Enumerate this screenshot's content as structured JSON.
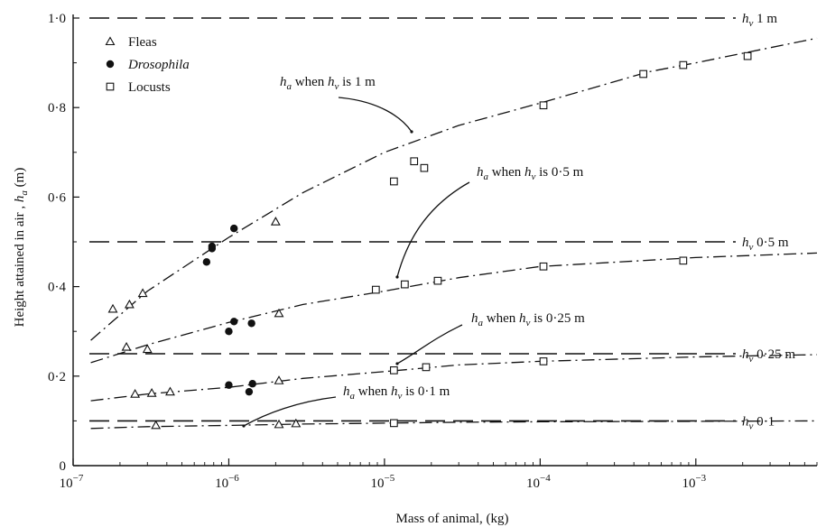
{
  "chart_data": {
    "type": "scatter",
    "xscale": "log",
    "xlim": [
      1e-07,
      0.006
    ],
    "ylim": [
      0,
      1.0
    ],
    "xlabel": "Mass of animal, (kg)",
    "ylabel": "Height attained in air , h_a (m)",
    "ylabel_parts": {
      "pre": "Height attained in air , ",
      "var": "h",
      "sub": "a",
      "post": " (m)"
    },
    "xticks": [
      {
        "value": 1e-07,
        "base": "10",
        "exp": "−7"
      },
      {
        "value": 1e-06,
        "base": "10",
        "exp": "−6"
      },
      {
        "value": 1e-05,
        "base": "10",
        "exp": "−5"
      },
      {
        "value": 0.0001,
        "base": "10",
        "exp": "−4"
      },
      {
        "value": 0.001,
        "base": "10",
        "exp": "−3"
      }
    ],
    "yticks": [
      {
        "value": 0,
        "label": "0"
      },
      {
        "value": 0.2,
        "label": "0·2"
      },
      {
        "value": 0.4,
        "label": "0·4"
      },
      {
        "value": 0.6,
        "label": "0·6"
      },
      {
        "value": 0.8,
        "label": "0·8"
      },
      {
        "value": 1.0,
        "label": "1·0"
      }
    ],
    "legend": {
      "placement": "top-left",
      "entries": [
        {
          "marker": "triangle",
          "label": "Fleas",
          "italic": false
        },
        {
          "marker": "filled-circle",
          "label": "Drosophila",
          "italic": true
        },
        {
          "marker": "square",
          "label": "Locusts",
          "italic": false
        }
      ]
    },
    "reference_lines": [
      {
        "y": 1.0,
        "label_var": "h",
        "label_sub": "v",
        "label_val": "1 m"
      },
      {
        "y": 0.5,
        "label_var": "h",
        "label_sub": "v",
        "label_val": "0·5 m"
      },
      {
        "y": 0.25,
        "label_var": "h",
        "label_sub": "v",
        "label_val": "0·25 m"
      },
      {
        "y": 0.1,
        "label_var": "h",
        "label_sub": "v",
        "label_val": "0·1"
      }
    ],
    "curves": [
      {
        "hv": "1 m",
        "x": [
          1.3e-07,
          3e-07,
          1e-06,
          3e-06,
          1e-05,
          3e-05,
          0.0001,
          0.0005,
          0.001,
          0.006
        ],
        "y": [
          0.28,
          0.39,
          0.51,
          0.61,
          0.7,
          0.76,
          0.81,
          0.88,
          0.9,
          0.955
        ]
      },
      {
        "hv": "0·5 m",
        "x": [
          1.3e-07,
          3e-07,
          1e-06,
          3e-06,
          1e-05,
          3e-05,
          0.0001,
          0.001,
          0.006
        ],
        "y": [
          0.23,
          0.27,
          0.32,
          0.36,
          0.39,
          0.42,
          0.445,
          0.465,
          0.475
        ]
      },
      {
        "hv": "0·25 m",
        "x": [
          1.3e-07,
          3e-07,
          1e-06,
          3e-06,
          1e-05,
          3e-05,
          0.0001,
          0.001,
          0.006
        ],
        "y": [
          0.145,
          0.16,
          0.175,
          0.195,
          0.21,
          0.225,
          0.233,
          0.243,
          0.248
        ]
      },
      {
        "hv": "0·1 m",
        "x": [
          1.3e-07,
          3e-07,
          1e-06,
          3e-06,
          1e-05,
          3e-05,
          0.0001,
          0.001,
          0.006
        ],
        "y": [
          0.083,
          0.087,
          0.09,
          0.093,
          0.095,
          0.097,
          0.098,
          0.099,
          0.1
        ]
      }
    ],
    "series": [
      {
        "name": "Fleas",
        "marker": "triangle",
        "points": [
          {
            "x": 1.8e-07,
            "y": 0.35
          },
          {
            "x": 2.3e-07,
            "y": 0.36
          },
          {
            "x": 2.8e-07,
            "y": 0.385
          },
          {
            "x": 2e-06,
            "y": 0.545
          },
          {
            "x": 2.2e-07,
            "y": 0.265
          },
          {
            "x": 3e-07,
            "y": 0.26
          },
          {
            "x": 2.1e-06,
            "y": 0.34
          },
          {
            "x": 2.5e-07,
            "y": 0.16
          },
          {
            "x": 3.2e-07,
            "y": 0.162
          },
          {
            "x": 4.2e-07,
            "y": 0.165
          },
          {
            "x": 2.1e-06,
            "y": 0.19
          },
          {
            "x": 3.4e-07,
            "y": 0.09
          },
          {
            "x": 2.1e-06,
            "y": 0.092
          },
          {
            "x": 2.7e-06,
            "y": 0.094
          }
        ]
      },
      {
        "name": "Drosophila",
        "marker": "filled-circle",
        "points": [
          {
            "x": 7.2e-07,
            "y": 0.455
          },
          {
            "x": 7.8e-07,
            "y": 0.49
          },
          {
            "x": 7.8e-07,
            "y": 0.485
          },
          {
            "x": 1.08e-06,
            "y": 0.53
          },
          {
            "x": 1e-06,
            "y": 0.3
          },
          {
            "x": 1.08e-06,
            "y": 0.322
          },
          {
            "x": 1.4e-06,
            "y": 0.318
          },
          {
            "x": 1e-06,
            "y": 0.18
          },
          {
            "x": 1.35e-06,
            "y": 0.165
          },
          {
            "x": 1.42e-06,
            "y": 0.183
          }
        ]
      },
      {
        "name": "Locusts",
        "marker": "square",
        "points": [
          {
            "x": 1.15e-05,
            "y": 0.635
          },
          {
            "x": 1.55e-05,
            "y": 0.68
          },
          {
            "x": 1.8e-05,
            "y": 0.665
          },
          {
            "x": 0.000105,
            "y": 0.805
          },
          {
            "x": 0.00046,
            "y": 0.875
          },
          {
            "x": 0.00083,
            "y": 0.895
          },
          {
            "x": 0.00215,
            "y": 0.915
          },
          {
            "x": 8.8e-06,
            "y": 0.393
          },
          {
            "x": 1.35e-05,
            "y": 0.405
          },
          {
            "x": 2.2e-05,
            "y": 0.413
          },
          {
            "x": 0.000105,
            "y": 0.445
          },
          {
            "x": 0.00083,
            "y": 0.458
          },
          {
            "x": 1.15e-05,
            "y": 0.213
          },
          {
            "x": 1.85e-05,
            "y": 0.22
          },
          {
            "x": 0.000105,
            "y": 0.233
          },
          {
            "x": 1.15e-05,
            "y": 0.095
          }
        ]
      }
    ],
    "annotations": [
      {
        "var": "h",
        "sub": "a",
        "text": " when ",
        "var2": "h",
        "sub2": "v",
        "text2": " is 1 m",
        "target": {
          "x": 4.7e-05,
          "y": 0.75
        }
      },
      {
        "var": "h",
        "sub": "a",
        "text": " when ",
        "var2": "h",
        "sub2": "v",
        "text2": " is 0·5 m",
        "target": {
          "x": 2.6e-05,
          "y": 0.42
        }
      },
      {
        "var": "h",
        "sub": "a",
        "text": " when ",
        "var2": "h",
        "sub2": "v",
        "text2": " is 0·25 m",
        "target": {
          "x": 2.6e-05,
          "y": 0.222
        }
      },
      {
        "var": "h",
        "sub": "a",
        "text": " when ",
        "var2": "h",
        "sub2": "v",
        "text2": " is 0·1 m",
        "target": {
          "x": 1.7e-06,
          "y": 0.098
        }
      }
    ]
  }
}
